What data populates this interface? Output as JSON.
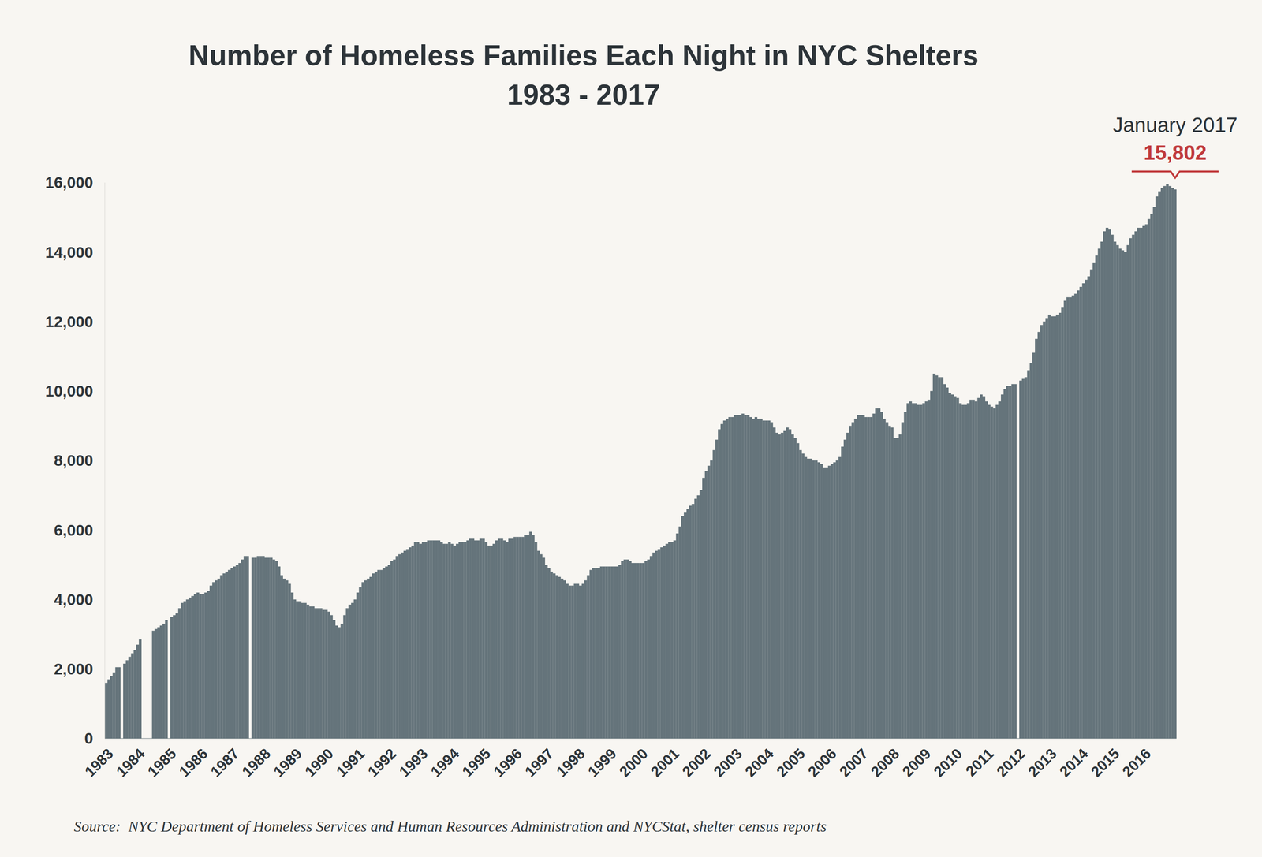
{
  "chart_data": {
    "type": "bar",
    "title": "Number of Homeless Families Each Night in NYC Shelters",
    "subtitle": "1983 - 2017",
    "source": "Source:  NYC Department of Homeless Services and Human Resources Administration and NYCStat, shelter census reports",
    "annotation": {
      "label": "January 2017",
      "value": 15802,
      "value_label": "15,802"
    },
    "color": "#65747b",
    "grid": false,
    "ylim": [
      0,
      16000
    ],
    "yticks": [
      0,
      {
        "value": 2000,
        "label": "2,000"
      },
      {
        "value": 4000,
        "label": "4,000"
      },
      {
        "value": 6000,
        "label": "6,000"
      },
      {
        "value": 8000,
        "label": "8,000"
      },
      {
        "value": 10000,
        "label": "10,000"
      },
      {
        "value": 12000,
        "label": "12,000"
      },
      {
        "value": 14000,
        "label": "14,000"
      },
      {
        "value": 16000,
        "label": "16,000"
      }
    ],
    "categories": [
      "1983",
      null,
      null,
      null,
      null,
      null,
      null,
      null,
      null,
      null,
      null,
      null,
      "1984",
      null,
      null,
      null,
      null,
      null,
      null,
      null,
      null,
      null,
      null,
      null,
      "1985",
      null,
      null,
      null,
      null,
      null,
      null,
      null,
      null,
      null,
      null,
      null,
      "1986",
      null,
      null,
      null,
      null,
      null,
      null,
      null,
      null,
      null,
      null,
      null,
      "1987",
      null,
      null,
      null,
      null,
      null,
      null,
      null,
      null,
      null,
      null,
      null,
      "1988",
      null,
      null,
      null,
      null,
      null,
      null,
      null,
      null,
      null,
      null,
      null,
      "1989",
      null,
      null,
      null,
      null,
      null,
      null,
      null,
      null,
      null,
      null,
      null,
      "1990",
      null,
      null,
      null,
      null,
      null,
      null,
      null,
      null,
      null,
      null,
      null,
      "1991",
      null,
      null,
      null,
      null,
      null,
      null,
      null,
      null,
      null,
      null,
      null,
      "1992",
      null,
      null,
      null,
      null,
      null,
      null,
      null,
      null,
      null,
      null,
      null,
      "1993",
      null,
      null,
      null,
      null,
      null,
      null,
      null,
      null,
      null,
      null,
      null,
      "1994",
      null,
      null,
      null,
      null,
      null,
      null,
      null,
      null,
      null,
      null,
      null,
      "1995",
      null,
      null,
      null,
      null,
      null,
      null,
      null,
      null,
      null,
      null,
      null,
      "1996",
      null,
      null,
      null,
      null,
      null,
      null,
      null,
      null,
      null,
      null,
      null,
      "1997",
      null,
      null,
      null,
      null,
      null,
      null,
      null,
      null,
      null,
      null,
      null,
      "1998",
      null,
      null,
      null,
      null,
      null,
      null,
      null,
      null,
      null,
      null,
      null,
      "1999",
      null,
      null,
      null,
      null,
      null,
      null,
      null,
      null,
      null,
      null,
      null,
      "2000",
      null,
      null,
      null,
      null,
      null,
      null,
      null,
      null,
      null,
      null,
      null,
      "2001",
      null,
      null,
      null,
      null,
      null,
      null,
      null,
      null,
      null,
      null,
      null,
      "2002",
      null,
      null,
      null,
      null,
      null,
      null,
      null,
      null,
      null,
      null,
      null,
      "2003",
      null,
      null,
      null,
      null,
      null,
      null,
      null,
      null,
      null,
      null,
      null,
      "2004",
      null,
      null,
      null,
      null,
      null,
      null,
      null,
      null,
      null,
      null,
      null,
      "2005",
      null,
      null,
      null,
      null,
      null,
      null,
      null,
      null,
      null,
      null,
      null,
      "2006",
      null,
      null,
      null,
      null,
      null,
      null,
      null,
      null,
      null,
      null,
      null,
      "2007",
      null,
      null,
      null,
      null,
      null,
      null,
      null,
      null,
      null,
      null,
      null,
      "2008",
      null,
      null,
      null,
      null,
      null,
      null,
      null,
      null,
      null,
      null,
      null,
      "2009",
      null,
      null,
      null,
      null,
      null,
      null,
      null,
      null,
      null,
      null,
      null,
      "2010",
      null,
      null,
      null,
      null,
      null,
      null,
      null,
      null,
      null,
      null,
      null,
      "2011",
      null,
      null,
      null,
      null,
      null,
      null,
      null,
      null,
      null,
      null,
      null,
      "2012",
      null,
      null,
      null,
      null,
      null,
      null,
      null,
      null,
      null,
      null,
      null,
      "2013",
      null,
      null,
      null,
      null,
      null,
      null,
      null,
      null,
      null,
      null,
      null,
      "2014",
      null,
      null,
      null,
      null,
      null,
      null,
      null,
      null,
      null,
      null,
      null,
      "2015",
      null,
      null,
      null,
      null,
      null,
      null,
      null,
      null,
      null,
      null,
      null,
      "2016",
      null,
      null,
      null,
      null,
      null,
      null,
      null,
      null,
      null,
      null,
      null,
      null
    ],
    "values": [
      1600,
      1700,
      1800,
      1900,
      2050,
      2050,
      null,
      2150,
      2250,
      2350,
      2450,
      2550,
      2700,
      2850,
      null,
      null,
      null,
      null,
      3100,
      3150,
      3200,
      3250,
      3300,
      3400,
      null,
      3500,
      3550,
      3600,
      3750,
      3900,
      3950,
      4000,
      4050,
      4100,
      4150,
      4200,
      4150,
      4150,
      4200,
      4250,
      4400,
      4500,
      4550,
      4600,
      4700,
      4750,
      4800,
      4850,
      4900,
      4950,
      5000,
      5050,
      5150,
      5250,
      5250,
      null,
      5200,
      5200,
      5250,
      5250,
      5250,
      5200,
      5200,
      5200,
      5150,
      5100,
      4950,
      4700,
      4600,
      4550,
      4450,
      4200,
      4000,
      3950,
      3950,
      3900,
      3900,
      3850,
      3800,
      3800,
      3750,
      3750,
      3750,
      3700,
      3700,
      3650,
      3550,
      3400,
      3250,
      3200,
      3300,
      3550,
      3750,
      3850,
      3900,
      4000,
      4200,
      4350,
      4500,
      4550,
      4600,
      4650,
      4750,
      4800,
      4850,
      4850,
      4900,
      4950,
      5000,
      5100,
      5150,
      5250,
      5300,
      5350,
      5400,
      5450,
      5500,
      5550,
      5650,
      5650,
      5600,
      5650,
      5650,
      5700,
      5700,
      5700,
      5700,
      5700,
      5650,
      5600,
      5600,
      5650,
      5600,
      5550,
      5600,
      5650,
      5650,
      5650,
      5700,
      5750,
      5750,
      5700,
      5700,
      5750,
      5750,
      5650,
      5550,
      5550,
      5600,
      5700,
      5750,
      5750,
      5700,
      5650,
      5750,
      5750,
      5800,
      5800,
      5800,
      5800,
      5850,
      5850,
      5950,
      5850,
      5650,
      5400,
      5300,
      5200,
      5000,
      4900,
      4800,
      4750,
      4700,
      4650,
      4600,
      4550,
      4450,
      4400,
      4400,
      4450,
      4450,
      4400,
      4450,
      4550,
      4700,
      4850,
      4900,
      4900,
      4900,
      4950,
      4950,
      4950,
      4950,
      4950,
      4950,
      4950,
      5000,
      5100,
      5150,
      5150,
      5100,
      5050,
      5050,
      5050,
      5050,
      5050,
      5100,
      5150,
      5250,
      5350,
      5400,
      5450,
      5500,
      5550,
      5600,
      5650,
      5650,
      5700,
      5900,
      6100,
      6400,
      6500,
      6600,
      6700,
      6750,
      6900,
      7000,
      7150,
      7500,
      7700,
      7850,
      8000,
      8300,
      8600,
      8900,
      9050,
      9150,
      9200,
      9250,
      9250,
      9300,
      9300,
      9300,
      9350,
      9300,
      9300,
      9250,
      9200,
      9250,
      9200,
      9200,
      9150,
      9150,
      9150,
      9100,
      8950,
      8800,
      8750,
      8800,
      8850,
      8950,
      8900,
      8750,
      8650,
      8500,
      8300,
      8200,
      8100,
      8050,
      8050,
      8000,
      8000,
      7950,
      7900,
      7800,
      7800,
      7850,
      7900,
      7950,
      8000,
      8100,
      8400,
      8600,
      8800,
      9000,
      9100,
      9200,
      9300,
      9300,
      9300,
      9250,
      9250,
      9250,
      9350,
      9500,
      9500,
      9400,
      9200,
      9100,
      9000,
      8950,
      8650,
      8650,
      8750,
      9100,
      9400,
      9650,
      9700,
      9650,
      9650,
      9600,
      9600,
      9650,
      9700,
      9750,
      10000,
      10500,
      10450,
      10400,
      10400,
      10200,
      10100,
      9950,
      9900,
      9850,
      9800,
      9650,
      9600,
      9600,
      9650,
      9750,
      9750,
      9700,
      9800,
      9900,
      9850,
      9700,
      9600,
      9550,
      9500,
      9600,
      9700,
      9900,
      10050,
      10150,
      10150,
      10200,
      10200,
      null,
      10300,
      10350,
      10400,
      10600,
      10800,
      11100,
      11500,
      11700,
      11900,
      12000,
      12100,
      12200,
      12150,
      12150,
      12200,
      12250,
      12400,
      12600,
      12700,
      12700,
      12750,
      12800,
      12900,
      13000,
      13100,
      13200,
      13300,
      13500,
      13700,
      13900,
      14100,
      14300,
      14600,
      14700,
      14650,
      14500,
      14300,
      14200,
      14100,
      14050,
      14000,
      14200,
      14400,
      14500,
      14600,
      14700,
      14700,
      14750,
      14800,
      14950,
      15100,
      15300,
      15600,
      15750,
      15850,
      15900,
      15950,
      15900,
      15850,
      15802
    ]
  }
}
